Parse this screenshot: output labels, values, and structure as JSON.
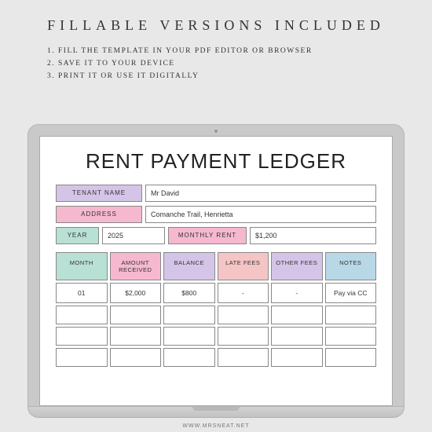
{
  "headline": "FILLABLE  VERSIONS  INCLUDED",
  "instructions": [
    "1. FILL THE TEMPLATE IN YOUR PDF EDITOR OR BROWSER",
    "2. SAVE IT TO YOUR DEVICE",
    "3. PRINT IT OR USE IT DIGITALLY"
  ],
  "ledger": {
    "title": "RENT PAYMENT LEDGER",
    "labels": {
      "tenant": "TENANT NAME",
      "address": "ADDRESS",
      "year": "YEAR",
      "monthly_rent": "MONTHLY RENT"
    },
    "values": {
      "tenant": "Mr David",
      "address": "Comanche Trail, Henrietta",
      "year": "2025",
      "monthly_rent": "$1,200"
    },
    "columns": [
      "MONTH",
      "AMOUNT RECEIVED",
      "BALANCE",
      "LATE FEES",
      "OTHER FEES",
      "NOTES"
    ],
    "column_colors": [
      "#b8e0d4",
      "#f5b8cf",
      "#d4c5e8",
      "#f5c5c5",
      "#d4c5e8",
      "#b8d8e8"
    ],
    "rows": [
      [
        "01",
        "$2,000",
        "$800",
        "-",
        "-",
        "Pay via CC"
      ],
      [
        "",
        "",
        "",
        "",
        "",
        ""
      ],
      [
        "",
        "",
        "",
        "",
        "",
        ""
      ],
      [
        "",
        "",
        "",
        "",
        "",
        ""
      ]
    ]
  },
  "footer": "WWW.MRSNEAT.NET",
  "colors": {
    "background": "#e8e8e8",
    "lavender": "#d4c5e8",
    "pink": "#f5b8cf",
    "mint": "#b8e0d4",
    "coral": "#f5c5c5",
    "sky": "#b8d8e8"
  }
}
